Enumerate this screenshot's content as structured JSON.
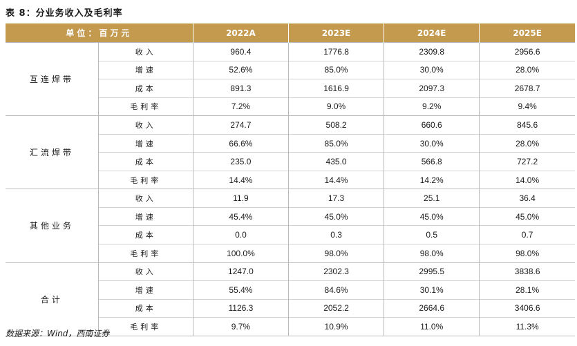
{
  "title": "表 8：分业务收入及毛利率",
  "header": {
    "unit": "单位：百万元",
    "years": [
      "2022A",
      "2023E",
      "2024E",
      "2025E"
    ]
  },
  "groups": [
    {
      "name": "互连焊带",
      "rows": [
        {
          "metric": "收入",
          "values": [
            "960.4",
            "1776.8",
            "2309.8",
            "2956.6"
          ]
        },
        {
          "metric": "增速",
          "values": [
            "52.6%",
            "85.0%",
            "30.0%",
            "28.0%"
          ]
        },
        {
          "metric": "成本",
          "values": [
            "891.3",
            "1616.9",
            "2097.3",
            "2678.7"
          ]
        },
        {
          "metric": "毛利率",
          "values": [
            "7.2%",
            "9.0%",
            "9.2%",
            "9.4%"
          ]
        }
      ]
    },
    {
      "name": "汇流焊带",
      "rows": [
        {
          "metric": "收入",
          "values": [
            "274.7",
            "508.2",
            "660.6",
            "845.6"
          ]
        },
        {
          "metric": "增速",
          "values": [
            "66.6%",
            "85.0%",
            "30.0%",
            "28.0%"
          ]
        },
        {
          "metric": "成本",
          "values": [
            "235.0",
            "435.0",
            "566.8",
            "727.2"
          ]
        },
        {
          "metric": "毛利率",
          "values": [
            "14.4%",
            "14.4%",
            "14.2%",
            "14.0%"
          ]
        }
      ]
    },
    {
      "name": "其他业务",
      "rows": [
        {
          "metric": "收入",
          "values": [
            "11.9",
            "17.3",
            "25.1",
            "36.4"
          ]
        },
        {
          "metric": "增速",
          "values": [
            "45.4%",
            "45.0%",
            "45.0%",
            "45.0%"
          ]
        },
        {
          "metric": "成本",
          "values": [
            "0.0",
            "0.3",
            "0.5",
            "0.7"
          ]
        },
        {
          "metric": "毛利率",
          "values": [
            "100.0%",
            "98.0%",
            "98.0%",
            "98.0%"
          ]
        }
      ]
    },
    {
      "name": "合计",
      "rows": [
        {
          "metric": "收入",
          "values": [
            "1247.0",
            "2302.3",
            "2995.5",
            "3838.6"
          ]
        },
        {
          "metric": "增速",
          "values": [
            "55.4%",
            "84.6%",
            "30.1%",
            "28.1%"
          ]
        },
        {
          "metric": "成本",
          "values": [
            "1126.3",
            "2052.2",
            "2664.6",
            "3406.6"
          ]
        },
        {
          "metric": "毛利率",
          "values": [
            "9.7%",
            "10.9%",
            "11.0%",
            "11.3%"
          ]
        }
      ]
    }
  ],
  "source": "数据来源：Wind，西南证券",
  "colors": {
    "header_bg": "#c49a4e",
    "header_text": "#ffffff"
  }
}
